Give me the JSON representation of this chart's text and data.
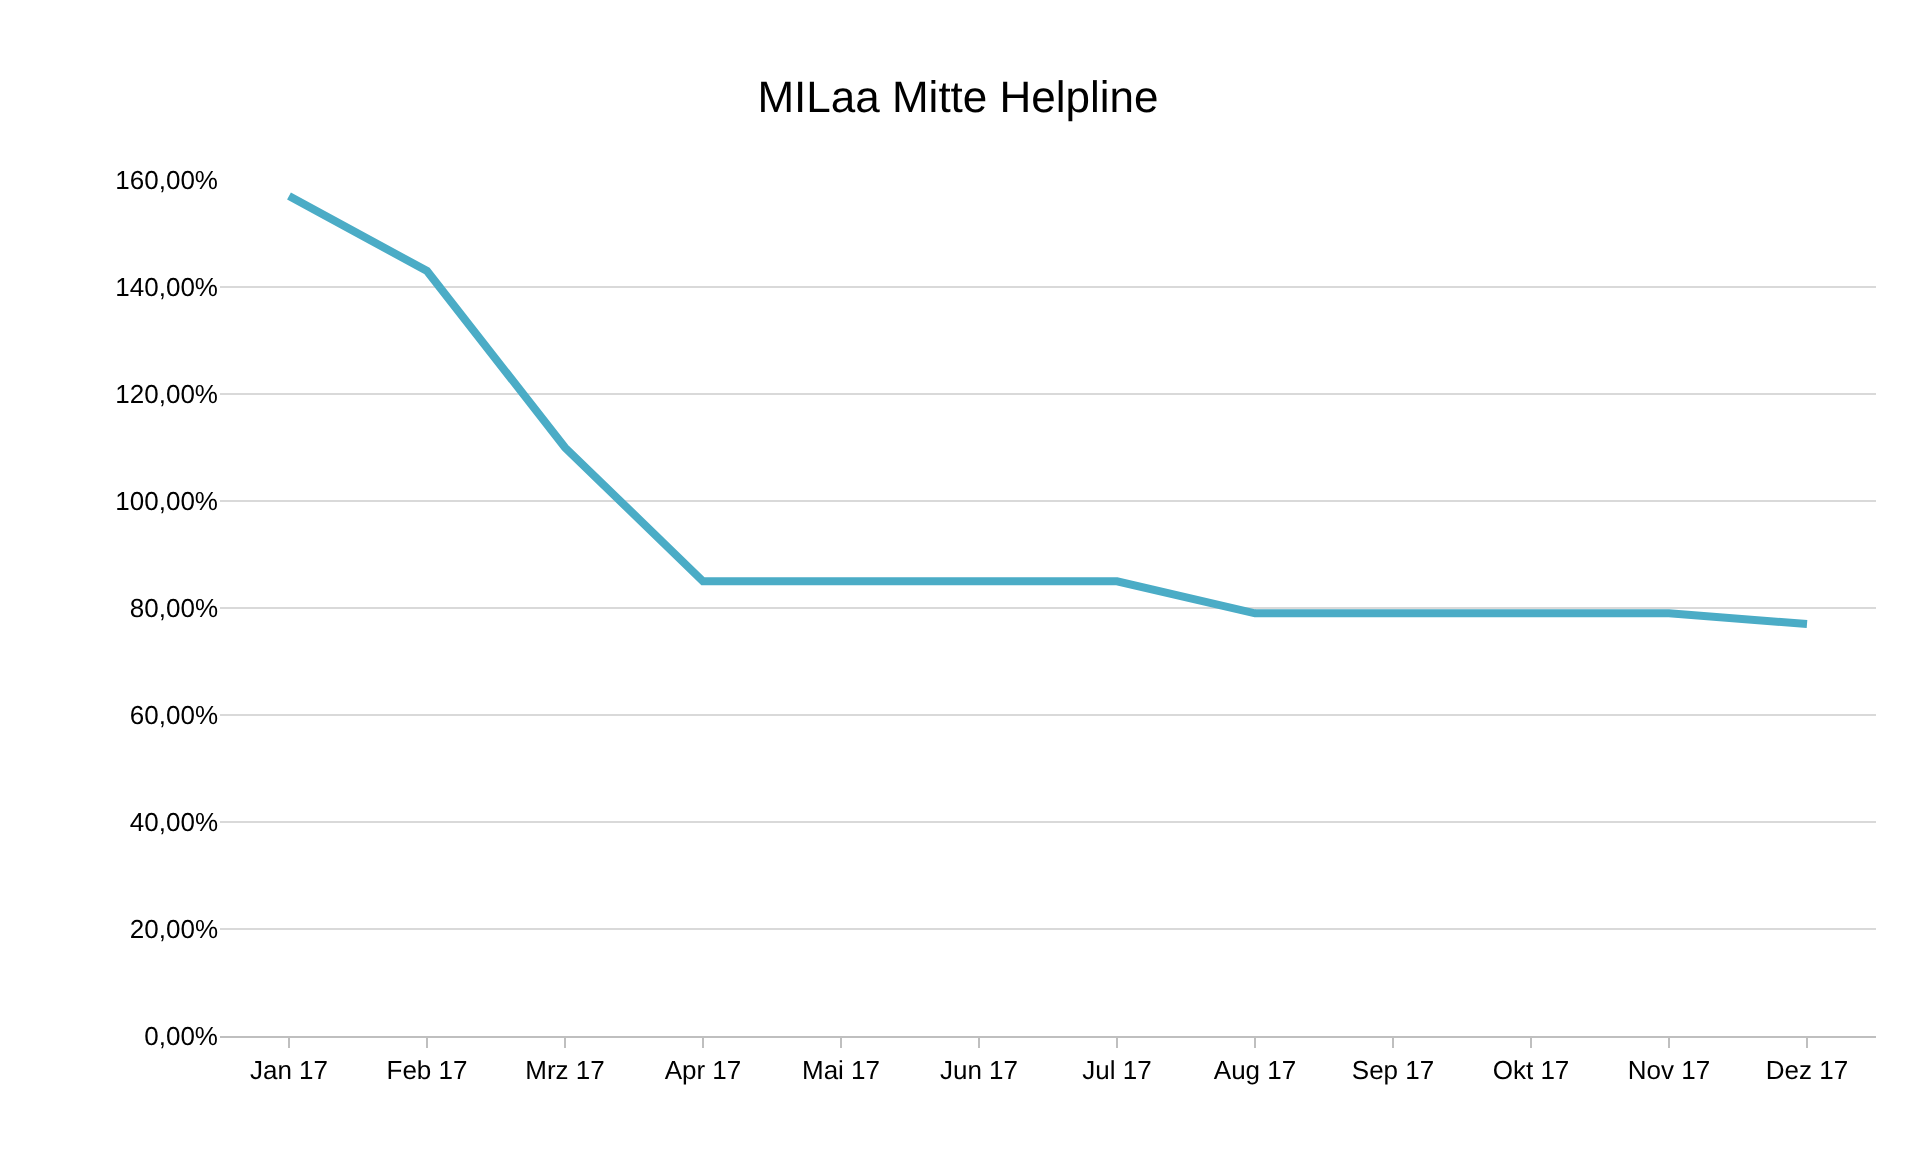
{
  "chart_data": {
    "type": "line",
    "title": "MILaa Mitte Helpline",
    "categories": [
      "Jan 17",
      "Feb 17",
      "Mrz 17",
      "Apr 17",
      "Mai 17",
      "Jun 17",
      "Jul 17",
      "Aug 17",
      "Sep 17",
      "Okt 17",
      "Nov 17",
      "Dez 17"
    ],
    "series": [
      {
        "color": "#4bacc6",
        "values": [
          157,
          143,
          110,
          85,
          85,
          85,
          85,
          79,
          79,
          79,
          79,
          77
        ]
      }
    ],
    "ylim": [
      0,
      160
    ],
    "yticks": [
      {
        "value": 0,
        "label": "0,00%"
      },
      {
        "value": 20,
        "label": "20,00%"
      },
      {
        "value": 40,
        "label": "40,00%"
      },
      {
        "value": 60,
        "label": "60,00%"
      },
      {
        "value": 80,
        "label": "80,00%"
      },
      {
        "value": 100,
        "label": "100,00%"
      },
      {
        "value": 120,
        "label": "120,00%"
      },
      {
        "value": 140,
        "label": "140,00%"
      },
      {
        "value": 160,
        "label": "160,00%"
      }
    ],
    "grid": "y",
    "marker": "none",
    "line_style": "solid"
  }
}
